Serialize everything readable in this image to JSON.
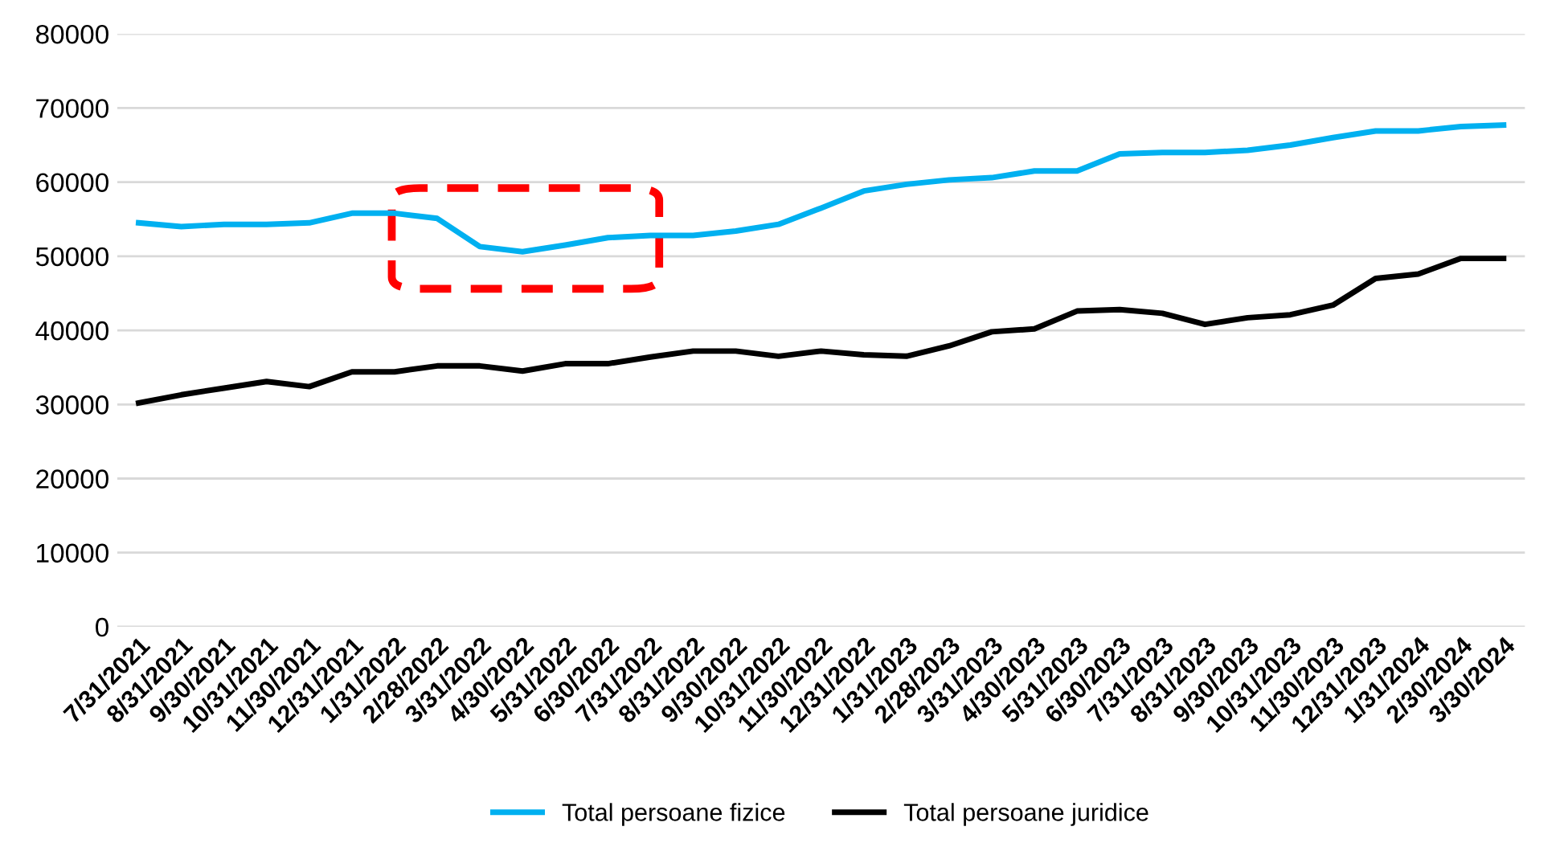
{
  "chart_data": {
    "type": "line",
    "categories": [
      "7/31/2021",
      "8/31/2021",
      "9/30/2021",
      "10/31/2021",
      "11/30/2021",
      "12/31/2021",
      "1/31/2022",
      "2/28/2022",
      "3/31/2022",
      "4/30/2022",
      "5/31/2022",
      "6/30/2022",
      "7/31/2022",
      "8/31/2022",
      "9/30/2022",
      "10/31/2022",
      "11/30/2022",
      "12/31/2022",
      "1/31/2023",
      "2/28/2023",
      "3/31/2023",
      "4/30/2023",
      "5/31/2023",
      "6/30/2023",
      "7/31/2023",
      "8/31/2023",
      "9/30/2023",
      "10/31/2023",
      "11/30/2023",
      "12/31/2023",
      "1/31/2024",
      "2/30/2024",
      "3/30/2024"
    ],
    "series": [
      {
        "name": "Total persoane fizice",
        "color": "#00b0f0",
        "values": [
          54500,
          54000,
          54300,
          54300,
          54500,
          55800,
          55800,
          55100,
          51300,
          50600,
          51500,
          52500,
          52800,
          52800,
          53400,
          54300,
          56500,
          58800,
          59700,
          60300,
          60600,
          61500,
          61500,
          63800,
          64000,
          64000,
          64300,
          65000,
          66000,
          66900,
          66900,
          67500,
          67700
        ]
      },
      {
        "name": "Total persoane juridice",
        "color": "#000000",
        "values": [
          30200,
          31300,
          32200,
          33100,
          32400,
          34400,
          34400,
          35200,
          35200,
          34500,
          35500,
          35500,
          36400,
          37200,
          37200,
          36500,
          37200,
          36700,
          36500,
          37900,
          39800,
          40200,
          42600,
          42800,
          42300,
          40800,
          41700,
          42100,
          43400,
          47000,
          47600,
          49700,
          49700
        ]
      }
    ],
    "ylim": [
      0,
      80000
    ],
    "yticks": [
      0,
      10000,
      20000,
      30000,
      40000,
      50000,
      60000,
      70000,
      80000
    ],
    "grid": "y",
    "legend": "bottom",
    "marker": "none",
    "line_style": "solid"
  }
}
